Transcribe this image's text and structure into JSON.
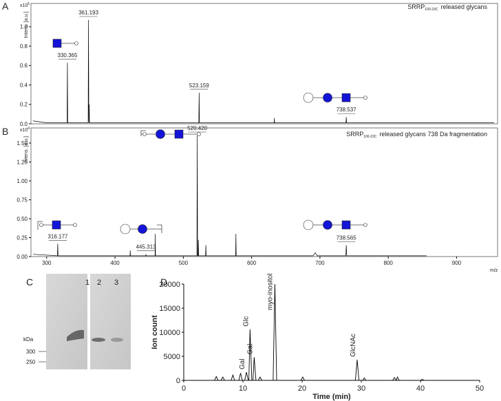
{
  "chart_data": [
    {
      "type": "line",
      "panel": "A",
      "title": "SRRP",
      "title_sub": "100-23C",
      "title_rest": "released glycans",
      "ylabel": "Intens. [a.u.]",
      "y_multiplier": "x10",
      "y_multiplier_exp": "5",
      "color": "#000000",
      "xlim": [
        277,
        960
      ],
      "ylim": [
        0,
        1.24
      ],
      "yticks": [
        {
          "value": 0,
          "label": "0.0"
        },
        {
          "value": 0.2,
          "label": "0.2"
        },
        {
          "value": 0.4,
          "label": "0.4"
        },
        {
          "value": 0.6,
          "label": "0.6"
        },
        {
          "value": 0.8,
          "label": "0.8"
        },
        {
          "value": 1,
          "label": "1.0"
        }
      ],
      "x": [
        280,
        300,
        329.9,
        330.365,
        330.8,
        345,
        360.7,
        361.193,
        361.7,
        362.2,
        362.7,
        400,
        450,
        522.7,
        523.159,
        523.6,
        600,
        633,
        633.3,
        633.6,
        700,
        738.1,
        738.537,
        739,
        800,
        955
      ],
      "values": [
        0.03,
        0.01,
        0.01,
        0.63,
        0.01,
        0.01,
        0.01,
        1.07,
        0.01,
        0.2,
        0.01,
        0.01,
        0.01,
        0.01,
        0.32,
        0.01,
        0.01,
        0.01,
        0.06,
        0.01,
        0.01,
        0.01,
        0.07,
        0.01,
        0.01,
        0.01
      ],
      "annotations": [
        {
          "text": "330.365",
          "x": 330.365,
          "y": 0.63
        },
        {
          "text": "361.193",
          "x": 361.193,
          "y": 1.07
        },
        {
          "text": "523.159",
          "x": 523.159,
          "y": 0.32
        },
        {
          "text": "738.537",
          "x": 738.537,
          "y": 0.07
        }
      ]
    },
    {
      "type": "line",
      "panel": "B",
      "title": "SRRP",
      "title_sub": "100-23C",
      "title_rest": "released glycans 738 Da fragmentation",
      "ylabel": "Intens. [a.u.]",
      "y_multiplier": "x10",
      "y_multiplier_exp": "4",
      "color": "#000000",
      "xlabel": "m/z",
      "xlim": [
        277,
        960
      ],
      "ylim": [
        0,
        1.7
      ],
      "xticks": [
        300,
        400,
        500,
        600,
        700,
        800,
        900
      ],
      "yticks": [
        {
          "value": 0,
          "label": "0.00"
        },
        0.25,
        {
          "value": 0.5,
          "label": "0.50"
        },
        0.75,
        {
          "value": 1,
          "label": "1.00"
        },
        1.25,
        {
          "value": 1.5,
          "label": "1.50"
        }
      ],
      "x": [
        280,
        315.7,
        316.177,
        316.6,
        400,
        422,
        422.3,
        422.6,
        445,
        445.313,
        445.6,
        458.7,
        459,
        459.3,
        519.9,
        520.42,
        520.9,
        521.6,
        522,
        522.4,
        532.6,
        533,
        533.4,
        576.6,
        577,
        577.4,
        690,
        693,
        696,
        737.9,
        738.565,
        739.2,
        856
      ],
      "values": [
        0.03,
        0.01,
        0.17,
        0.01,
        0.01,
        0.01,
        0.08,
        0.01,
        0.01,
        0.03,
        0.01,
        0.01,
        0.3,
        0.01,
        0.01,
        1.6,
        0.01,
        0.01,
        0.22,
        0.01,
        0.01,
        0.15,
        0.01,
        0.01,
        0.3,
        0.01,
        0.01,
        0.05,
        0.01,
        0.01,
        0.15,
        0.01,
        0.01
      ],
      "annotations": [
        {
          "text": "316.177",
          "x": 316.177,
          "y": 0.17
        },
        {
          "text": "445.313",
          "x": 445.313,
          "y": 0.03
        },
        {
          "text": "520.420",
          "x": 520.42,
          "y": 1.6
        },
        {
          "text": "738.565",
          "x": 738.565,
          "y": 0.15
        }
      ]
    },
    {
      "type": "line",
      "panel": "D",
      "xlabel": "Time (min)",
      "ylabel": "Ion count",
      "color": "#000000",
      "xlim": [
        0,
        50
      ],
      "ylim": [
        0,
        20000
      ],
      "xticks": [
        0,
        10,
        20,
        30,
        40,
        50
      ],
      "yticks": [
        0,
        5000,
        10000,
        15000,
        20000
      ],
      "x": [
        0,
        5.2,
        5.5,
        5.8,
        6.3,
        6.6,
        6.9,
        8.0,
        8.3,
        8.6,
        9.3,
        9.6,
        9.9,
        10.3,
        10.6,
        10.9,
        11.0,
        11.2,
        11.5,
        11.7,
        11.9,
        12.2,
        12.6,
        12.9,
        13.2,
        15.1,
        15.4,
        15.7,
        19.8,
        20.1,
        20.4,
        29.0,
        29.3,
        29.6,
        30.2,
        30.5,
        30.8,
        35.3,
        35.6,
        35.9,
        36.1,
        36.4,
        40.0,
        40.3,
        40.6,
        50
      ],
      "values": [
        0,
        0,
        800,
        0,
        0,
        700,
        0,
        0,
        1100,
        0,
        0,
        1500,
        0,
        0,
        1700,
        0,
        0,
        10600,
        0,
        0,
        4800,
        0,
        0,
        700,
        0,
        0,
        20000,
        0,
        0,
        700,
        0,
        0,
        4300,
        0,
        0,
        500,
        0,
        0,
        600,
        0,
        700,
        0,
        0,
        200,
        0,
        0
      ],
      "annotations": [
        {
          "text": "Gal",
          "x": 10.6,
          "y": 1700
        },
        {
          "text": "Glc",
          "x": 11.2,
          "y": 10600
        },
        {
          "text": "Gal",
          "x": 11.9,
          "y": 4800
        },
        {
          "text": "myo-inositol",
          "x": 15.4,
          "y": 20000
        },
        {
          "text": "GlcNAc",
          "x": 29.3,
          "y": 4300
        }
      ]
    }
  ],
  "gel": {
    "panel": "C",
    "lanes": [
      "1",
      "2",
      "3"
    ],
    "unit": "kDa",
    "markers": [
      "300",
      "250"
    ]
  }
}
